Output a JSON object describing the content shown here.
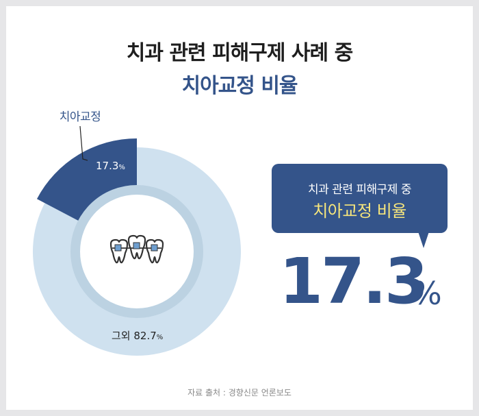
{
  "title_line1": "치과 관련 피해구제 사례 중",
  "title_line2": "치아교정 비율",
  "chart_data": {
    "type": "pie",
    "style": "donut",
    "slices": [
      {
        "name": "치아교정",
        "value": 17.3,
        "label": "17.3",
        "unit": "%",
        "color": "#34548a"
      },
      {
        "name": "그외",
        "value": 82.7,
        "label": "82.7",
        "unit": "%",
        "color": "#cfe1ef"
      }
    ],
    "callout_label": "치아교정",
    "other_label": "그외 82.7"
  },
  "callout": {
    "line1": "치과 관련 피해구제 중",
    "line2": "치아교정 비율",
    "value": "17.3",
    "unit": "%"
  },
  "icon": "teeth-braces-icon",
  "source": "자료 출처 : 경향신문 언론보도",
  "colors": {
    "accent": "#34548a",
    "light": "#cfe1ef",
    "highlight": "#f7e67c"
  }
}
